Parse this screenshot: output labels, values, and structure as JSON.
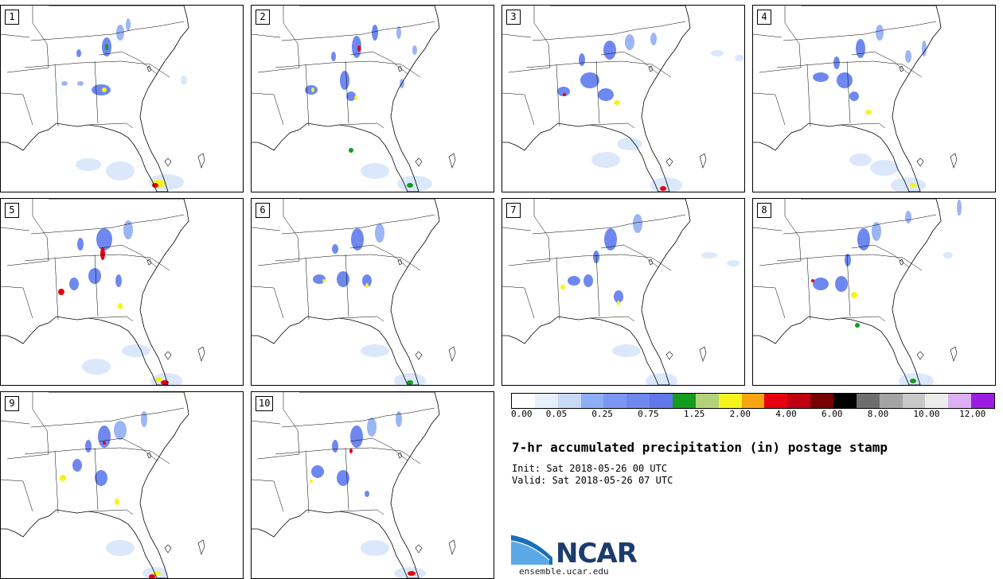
{
  "panels": [
    {
      "label": "1"
    },
    {
      "label": "2"
    },
    {
      "label": "3"
    },
    {
      "label": "4"
    },
    {
      "label": "5"
    },
    {
      "label": "6"
    },
    {
      "label": "7"
    },
    {
      "label": "8"
    },
    {
      "label": "9"
    },
    {
      "label": "10"
    }
  ],
  "colorbar": {
    "colors": [
      "#ffffff",
      "#e6f0fd",
      "#c9daf8",
      "#8eaef5",
      "#7c97f3",
      "#6e88f0",
      "#6178ec",
      "#159b1e",
      "#b3d37b",
      "#f6f31a",
      "#f6a412",
      "#e8000f",
      "#bf0010",
      "#760000",
      "#000000",
      "#6e6e6e",
      "#a4a4a4",
      "#c8c8c8",
      "#ececec",
      "#dcb0f2",
      "#9b1de3"
    ],
    "tick_labels": [
      "0.00",
      "0.05",
      "0.25",
      "0.75",
      "1.25",
      "2.00",
      "4.00",
      "6.00",
      "8.00",
      "10.00",
      "12.00"
    ]
  },
  "title": "7-hr accumulated precipitation (in) postage stamp",
  "init_line": "Init: Sat 2018-05-26 00 UTC",
  "valid_line": "Valid: Sat 2018-05-26 07 UTC",
  "logo": {
    "name": "NCAR",
    "url": "ensemble.ucar.edu"
  }
}
